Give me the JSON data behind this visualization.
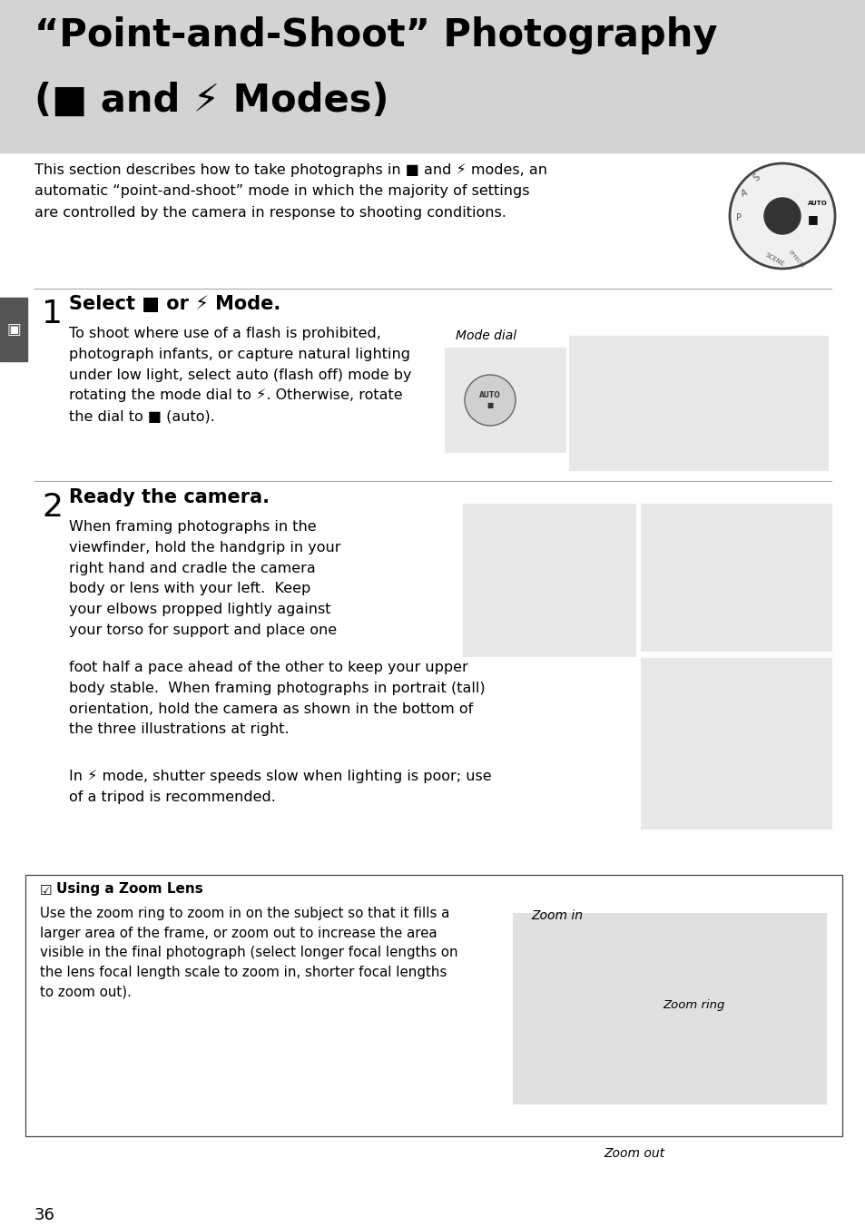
{
  "page_bg": "#ffffff",
  "header_bg": "#d3d3d3",
  "header_line1": "“Point-and-Shoot” Photography",
  "header_line2": "(■ and ⚡ Modes)",
  "header_text_color": "#000000",
  "intro_text": "This section describes how to take photographs in ■ and ⚡ modes, an\nautomatic “point-and-shoot” mode in which the majority of settings\nare controlled by the camera in response to shooting conditions.",
  "step1_num": "1",
  "step1_title": "Select ■ or ⚡ Mode.",
  "step1_body": "To shoot where use of a flash is prohibited,\nphotograph infants, or capture natural lighting\nunder low light, select auto (flash off) mode by\nrotating the mode dial to ⚡. Otherwise, rotate\nthe dial to ■ (auto).",
  "step1_img_caption": "Mode dial",
  "step2_num": "2",
  "step2_title": "Ready the camera.",
  "step2_body_left": "When framing photographs in the\nviewfinder, hold the handgrip in your\nright hand and cradle the camera\nbody or lens with your left.  Keep\nyour elbows propped lightly against\nyour torso for support and place one",
  "step2_body_full": "foot half a pace ahead of the other to keep your upper\nbody stable.  When framing photographs in portrait (tall)\norientation, hold the camera as shown in the bottom of\nthe three illustrations at right.",
  "step2_tripod": "In ⚡ mode, shutter speeds slow when lighting is poor; use\nof a tripod is recommended.",
  "note_title": "Using a Zoom Lens",
  "note_body": "Use the zoom ring to zoom in on the subject so that it fills a\nlarger area of the frame, or zoom out to increase the area\nvisible in the final photograph (select longer focal lengths on\nthe lens focal length scale to zoom in, shorter focal lengths\nto zoom out).",
  "note_cap1": "Zoom in",
  "note_cap2": "Zoom ring",
  "note_cap3": "Zoom out",
  "page_num": "36",
  "sidebar_color": "#555555",
  "img_color": "#e8e8e8",
  "img_border": "#aaaaaa",
  "sep_color": "#aaaaaa"
}
